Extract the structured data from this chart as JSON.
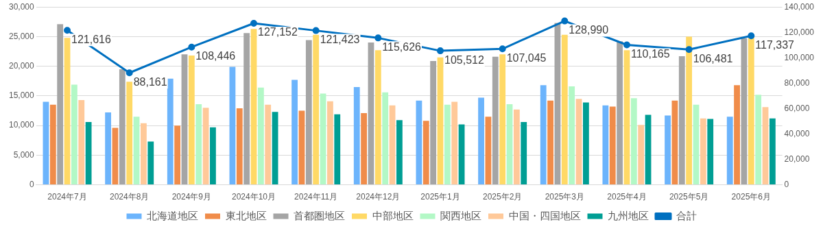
{
  "chart_data": {
    "type": "bar",
    "categories": [
      "2024年7月",
      "2024年8月",
      "2024年9月",
      "2024年10月",
      "2024年11月",
      "2024年12月",
      "2025年1月",
      "2025年2月",
      "2025年3月",
      "2025年4月",
      "2025年5月",
      "2025年6月"
    ],
    "series": [
      {
        "name": "北海道地区",
        "color": "#6cb4fc",
        "values": [
          14000,
          12200,
          17900,
          19900,
          17700,
          16500,
          14200,
          14700,
          16800,
          13400,
          11700,
          11500
        ]
      },
      {
        "name": "東北地区",
        "color": "#f08c4a",
        "values": [
          13500,
          9600,
          10000,
          12900,
          12500,
          12100,
          10800,
          11500,
          14200,
          13200,
          14200,
          16800
        ]
      },
      {
        "name": "首都圏地区",
        "color": "#a5a5a5",
        "values": [
          27100,
          19500,
          22000,
          25600,
          24400,
          24000,
          20900,
          21600,
          27300,
          24200,
          21700,
          24700
        ]
      },
      {
        "name": "中部地区",
        "color": "#ffd966",
        "values": [
          24800,
          17400,
          21800,
          26300,
          25300,
          22700,
          21500,
          22000,
          25300,
          22700,
          25000,
          24800
        ]
      },
      {
        "name": "関西地区",
        "color": "#b3f8c6",
        "values": [
          16900,
          11500,
          13600,
          16400,
          15400,
          15600,
          13500,
          13600,
          16600,
          14600,
          13500,
          15200
        ]
      },
      {
        "name": "中国・四国地区",
        "color": "#ffc999",
        "values": [
          14300,
          10400,
          13000,
          13500,
          14100,
          13400,
          14000,
          12700,
          14500,
          10100,
          11200,
          13100
        ]
      },
      {
        "name": "九州地区",
        "color": "#009e94",
        "values": [
          10600,
          7300,
          9700,
          12300,
          11900,
          10900,
          10200,
          10600,
          13900,
          11800,
          11100,
          11200
        ]
      },
      {
        "name": "合計",
        "type": "line",
        "axis": "y2",
        "color": "#0070c0",
        "marker": "circle",
        "values": [
          121616,
          88161,
          108446,
          127152,
          121423,
          115626,
          105512,
          107045,
          128990,
          110165,
          106481,
          117337
        ],
        "value_labels": [
          "121,616",
          "88,161",
          "108,446",
          "127,152",
          "121,423",
          "115,626",
          "105,512",
          "107,045",
          "128,990",
          "110,165",
          "106,481",
          "117,337"
        ]
      }
    ],
    "ylim": [
      0,
      30000
    ],
    "yticks": [
      0,
      {
        "value": 5000,
        "label": "5,000"
      },
      {
        "value": 10000,
        "label": "10,000"
      },
      {
        "value": 15000,
        "label": "15,000"
      },
      {
        "value": 20000,
        "label": "20,000"
      },
      {
        "value": 25000,
        "label": "25,000"
      },
      {
        "value": 30000,
        "label": "30,000"
      }
    ],
    "y2lim": [
      0,
      140000
    ],
    "y2ticks": [
      0,
      {
        "value": 20000,
        "label": "20,000"
      },
      {
        "value": 40000,
        "label": "40,000"
      },
      {
        "value": 60000,
        "label": "60,000"
      },
      {
        "value": 80000,
        "label": "80,000"
      },
      {
        "value": 100000,
        "label": "100,000"
      },
      {
        "value": 120000,
        "label": "120,000"
      },
      {
        "value": 140000,
        "label": "140,000"
      }
    ],
    "grid": "y",
    "legend": "bottom"
  }
}
